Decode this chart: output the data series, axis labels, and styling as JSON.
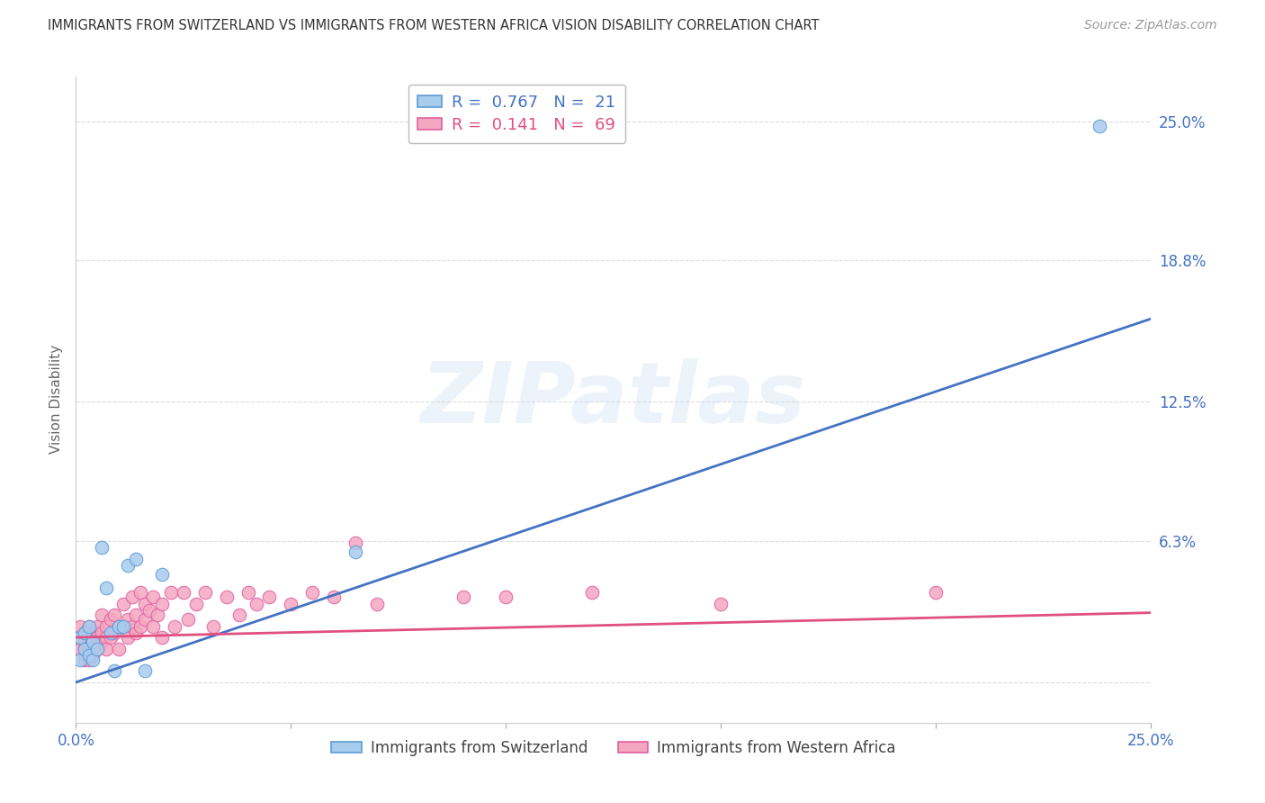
{
  "title": "IMMIGRANTS FROM SWITZERLAND VS IMMIGRANTS FROM WESTERN AFRICA VISION DISABILITY CORRELATION CHART",
  "source": "Source: ZipAtlas.com",
  "ylabel": "Vision Disability",
  "xlim": [
    0.0,
    0.25
  ],
  "ylim": [
    -0.018,
    0.27
  ],
  "yticks": [
    0.0,
    0.063,
    0.125,
    0.188,
    0.25
  ],
  "ytick_labels": [
    "",
    "6.3%",
    "12.5%",
    "18.8%",
    "25.0%"
  ],
  "xticks": [
    0.0,
    0.05,
    0.1,
    0.15,
    0.2,
    0.25
  ],
  "xtick_labels": [
    "0.0%",
    "",
    "",
    "",
    "",
    "25.0%"
  ],
  "blue_fill": "#A8CCEE",
  "blue_edge": "#5B9BD5",
  "blue_line": "#4472C4",
  "pink_fill": "#F4A7C0",
  "pink_edge": "#E060A0",
  "pink_line": "#E05080",
  "grid_color": "#DDDDDD",
  "watermark_text": "ZIPatlas",
  "R_blue": "0.767",
  "N_blue": "21",
  "R_pink": "0.141",
  "N_pink": "69",
  "label_blue": "Immigrants from Switzerland",
  "label_pink": "Immigrants from Western Africa",
  "blue_line_x": [
    0.0,
    0.25
  ],
  "blue_line_y": [
    0.0,
    0.162
  ],
  "pink_line_x": [
    0.0,
    0.25
  ],
  "pink_line_y": [
    0.02,
    0.031
  ],
  "swiss_x": [
    0.001,
    0.001,
    0.002,
    0.002,
    0.003,
    0.003,
    0.004,
    0.004,
    0.005,
    0.006,
    0.007,
    0.008,
    0.009,
    0.01,
    0.011,
    0.012,
    0.014,
    0.016,
    0.02,
    0.065,
    0.238
  ],
  "swiss_y": [
    0.01,
    0.02,
    0.015,
    0.022,
    0.012,
    0.025,
    0.018,
    0.01,
    0.015,
    0.06,
    0.042,
    0.022,
    0.005,
    0.025,
    0.025,
    0.052,
    0.055,
    0.005,
    0.048,
    0.058,
    0.248
  ],
  "africa_x": [
    0.001,
    0.001,
    0.001,
    0.002,
    0.002,
    0.002,
    0.002,
    0.003,
    0.003,
    0.003,
    0.003,
    0.004,
    0.004,
    0.004,
    0.005,
    0.005,
    0.005,
    0.006,
    0.006,
    0.006,
    0.007,
    0.007,
    0.007,
    0.008,
    0.008,
    0.009,
    0.009,
    0.01,
    0.01,
    0.011,
    0.011,
    0.012,
    0.012,
    0.013,
    0.013,
    0.014,
    0.014,
    0.015,
    0.015,
    0.016,
    0.016,
    0.017,
    0.018,
    0.018,
    0.019,
    0.02,
    0.02,
    0.022,
    0.023,
    0.025,
    0.026,
    0.028,
    0.03,
    0.032,
    0.035,
    0.038,
    0.04,
    0.042,
    0.045,
    0.05,
    0.055,
    0.06,
    0.065,
    0.07,
    0.09,
    0.1,
    0.12,
    0.15,
    0.2
  ],
  "africa_y": [
    0.02,
    0.015,
    0.025,
    0.022,
    0.018,
    0.015,
    0.01,
    0.025,
    0.02,
    0.015,
    0.01,
    0.022,
    0.018,
    0.012,
    0.025,
    0.02,
    0.015,
    0.03,
    0.022,
    0.018,
    0.025,
    0.02,
    0.015,
    0.028,
    0.02,
    0.03,
    0.022,
    0.025,
    0.015,
    0.035,
    0.025,
    0.028,
    0.02,
    0.038,
    0.025,
    0.03,
    0.022,
    0.04,
    0.025,
    0.035,
    0.028,
    0.032,
    0.038,
    0.025,
    0.03,
    0.035,
    0.02,
    0.04,
    0.025,
    0.04,
    0.028,
    0.035,
    0.04,
    0.025,
    0.038,
    0.03,
    0.04,
    0.035,
    0.038,
    0.035,
    0.04,
    0.038,
    0.062,
    0.035,
    0.038,
    0.038,
    0.04,
    0.035,
    0.04
  ]
}
